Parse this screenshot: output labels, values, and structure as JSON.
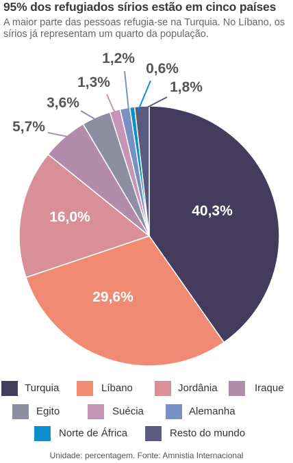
{
  "header": {
    "title": "95% dos refugiados sírios estão em cinco países",
    "subtitle": "A maior parte das pessoas refugia-se na Turquia. No Líbano, os sírios já representam um quarto da população."
  },
  "chart_data": {
    "type": "pie",
    "unit": "percentagem",
    "slices": [
      {
        "name": "Turquia",
        "value": 40.3,
        "label": "40,3%",
        "color": "#433c5c"
      },
      {
        "name": "Líbano",
        "value": 29.6,
        "label": "29,6%",
        "color": "#f08a72"
      },
      {
        "name": "Jordânia",
        "value": 16.0,
        "label": "16,0%",
        "color": "#d98f98"
      },
      {
        "name": "Iraque",
        "value": 5.7,
        "label": "5,7%",
        "color": "#b48cab"
      },
      {
        "name": "Egito",
        "value": 3.6,
        "label": "3,6%",
        "color": "#8e8ea2"
      },
      {
        "name": "Suécia",
        "value": 1.3,
        "label": "1,3%",
        "color": "#c595b8"
      },
      {
        "name": "Alemanha",
        "value": 1.2,
        "label": "1,2%",
        "color": "#7791c2"
      },
      {
        "name": "Norte de África",
        "value": 0.6,
        "label": "0,6%",
        "color": "#0c8fcb"
      },
      {
        "name": "Resto do mundo",
        "value": 1.8,
        "label": "1,8%",
        "color": "#5a5a7c"
      }
    ]
  },
  "footer": {
    "text": "Unidade: percentagem. Fonte: Amnistia Internacional"
  }
}
